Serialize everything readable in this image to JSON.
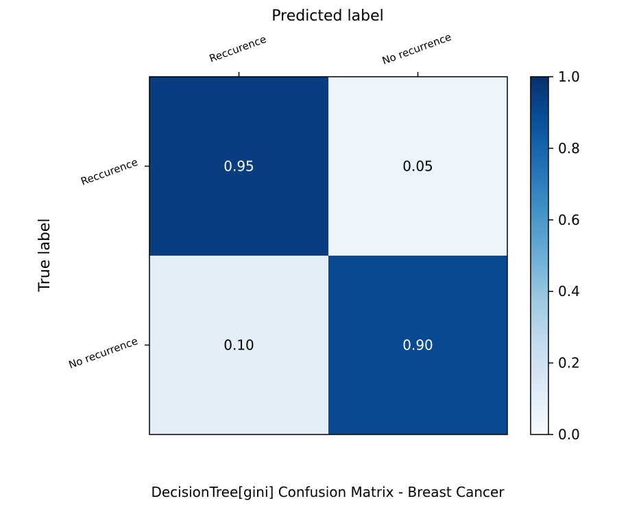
{
  "chart_data": {
    "type": "heatmap",
    "title": "DecisionTree[gini]  Confusion Matrix - Breast Cancer",
    "xlabel": "Predicted label",
    "ylabel": "True label",
    "x_categories": [
      "Reccurence",
      "No recurrence"
    ],
    "y_categories": [
      "Reccurence",
      "No recurrence"
    ],
    "values": [
      [
        0.95,
        0.05
      ],
      [
        0.1,
        0.9
      ]
    ],
    "value_labels": [
      [
        "0.95",
        "0.05"
      ],
      [
        "0.10",
        "0.90"
      ]
    ],
    "colormap": "Blues",
    "colorbar": {
      "range": [
        0.0,
        1.0
      ],
      "ticks": [
        "0.0",
        "0.2",
        "0.4",
        "0.6",
        "0.8",
        "1.0"
      ]
    }
  }
}
